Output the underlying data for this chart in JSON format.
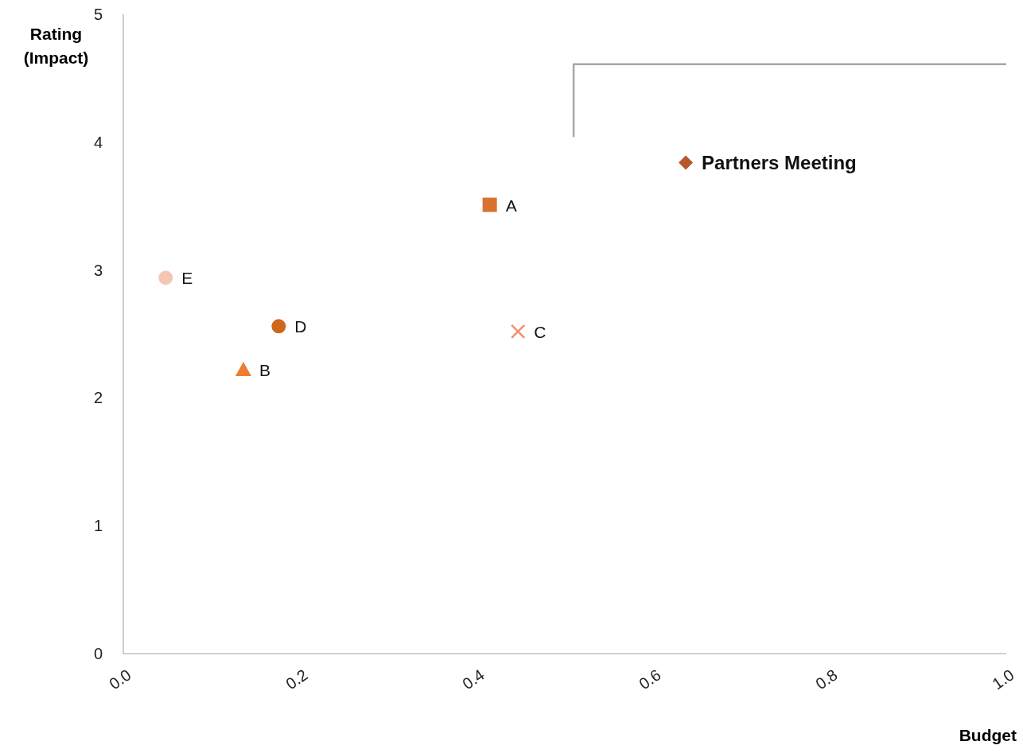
{
  "chart_data": {
    "type": "scatter",
    "xlabel": "Budget",
    "ylabel": "Rating (Impact)",
    "xlim": [
      0,
      1
    ],
    "xticks": [
      {
        "value": 0,
        "label": "0.0"
      },
      {
        "value": 0.2,
        "label": "0.2"
      },
      {
        "value": 0.4,
        "label": "0.4"
      },
      {
        "value": 0.6,
        "label": "0.6"
      },
      {
        "value": 0.8,
        "label": "0.8"
      },
      {
        "value": 1,
        "label": "1.0"
      }
    ],
    "ylim": [
      0,
      5
    ],
    "yticks": [
      0,
      1,
      2,
      3,
      4,
      5
    ],
    "grid": false,
    "legend": false,
    "series": [
      {
        "name": "Partners Meeting",
        "color": "#b5592a",
        "marker": "diamond",
        "x": [
          0.637
        ],
        "values": [
          3.84
        ]
      },
      {
        "name": "A",
        "color": "#d9722f",
        "marker": "square",
        "x": [
          0.415
        ],
        "values": [
          3.51
        ]
      },
      {
        "name": "E",
        "color": "#f4c7b5",
        "marker": "circle",
        "x": [
          0.048
        ],
        "values": [
          2.94
        ]
      },
      {
        "name": "D",
        "color": "#d0671f",
        "marker": "circle",
        "x": [
          0.176
        ],
        "values": [
          2.56
        ]
      },
      {
        "name": "C",
        "color": "#f0906a",
        "marker": "cross",
        "x": [
          0.447
        ],
        "values": [
          2.52
        ]
      },
      {
        "name": "B",
        "color": "#ed7d31",
        "marker": "triangle",
        "x": [
          0.136
        ],
        "values": [
          2.22
        ]
      },
      {
        "type": "line",
        "color": "#a6a6a6",
        "marker": "none",
        "x": [
          0.51,
          0.51,
          1
        ],
        "values": [
          4.04,
          4.61,
          4.61
        ]
      }
    ]
  }
}
